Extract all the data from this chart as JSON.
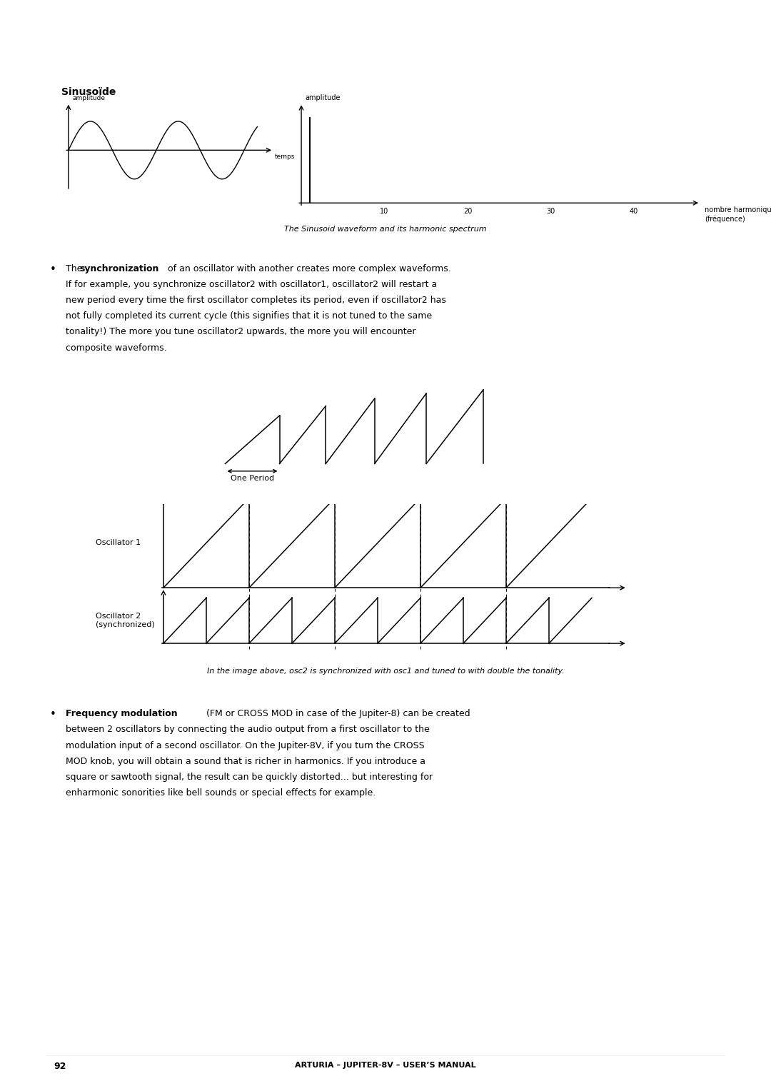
{
  "bg_color": "#ffffff",
  "page_width": 10.8,
  "page_height": 15.28,
  "title_sinusoide": "Sinusoïde",
  "caption1": "The Sinusoid waveform and its harmonic spectrum",
  "caption2": "In the image above, osc2 is synchronized with osc1 and tuned to with double the tonality.",
  "footer_text": "ARTURIA – JUPITER-8V – USER’S MANUAL",
  "page_number": "92",
  "one_period_label": "One Period",
  "osc1_label": "Oscillator 1",
  "osc2_label": "Oscillator 2\n(synchronized)",
  "sin_amplitude_label": "amplitude",
  "temps_label": "temps",
  "nb_harmonique_label": "nombre harmonique\n(fréquence)",
  "spectrum_amplitude_label": "amplitude",
  "spectrum_xticks": [
    10,
    20,
    30,
    40
  ]
}
